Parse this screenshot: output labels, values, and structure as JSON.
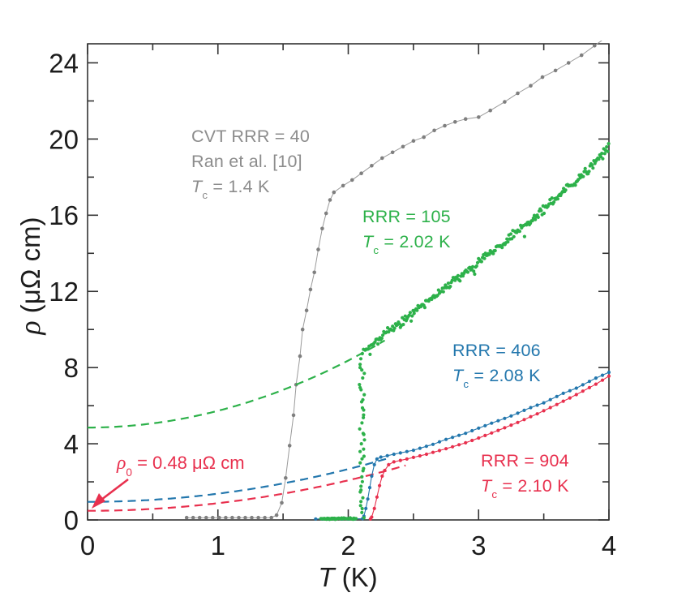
{
  "colors": {
    "gray_line": "#9a9a9a",
    "gray_marker": "#7f7f7f",
    "gray_text": "#8c8c8c",
    "green": "#2db14a",
    "blue": "#2377ad",
    "red": "#e8304e",
    "axis": "#333333",
    "tick_text": "#1c1c1c"
  },
  "axis_labels": {
    "x": {
      "symbol": "T",
      "rest": " (K)"
    },
    "y": {
      "symbol": "ρ",
      "rest": " (μΩ cm)"
    }
  },
  "labels": {
    "cvt": {
      "line1": "CVT RRR = 40",
      "line2": "Ran et al. [10]",
      "tc": {
        "symbol": "T",
        "sub": "c",
        "rest": " = 1.4 K"
      }
    },
    "rrr105": {
      "line1": "RRR = 105",
      "tc": {
        "symbol": "T",
        "sub": "c",
        "rest": " = 2.02 K"
      }
    },
    "rrr406": {
      "line1": "RRR = 406",
      "tc": {
        "symbol": "T",
        "sub": "c",
        "rest": " = 2.08 K"
      }
    },
    "rrr904": {
      "line1": "RRR = 904",
      "tc": {
        "symbol": "T",
        "sub": "c",
        "rest": " = 2.10 K"
      }
    }
  },
  "annotation_rho0": {
    "symbol": "ρ",
    "sub": "0",
    "rest": " = 0.48 μΩ cm"
  },
  "chart_data": {
    "type": "line+scatter",
    "title": "",
    "xlabel": "T (K)",
    "ylabel": "ρ (μΩ cm)",
    "xlim": [
      0,
      4
    ],
    "ylim": [
      0,
      25
    ],
    "grid": false,
    "xticks": {
      "major": [
        0,
        1,
        2,
        3,
        4
      ],
      "minor": [
        0.5,
        1.5,
        2.5,
        3.5
      ],
      "labels": [
        "0",
        "1",
        "2",
        "3",
        "4"
      ]
    },
    "yticks": {
      "major": [
        0,
        4,
        8,
        12,
        16,
        20,
        24
      ],
      "minor": [
        2,
        6,
        10,
        14,
        18,
        22
      ],
      "labels": [
        "0",
        "4",
        "8",
        "12",
        "16",
        "20",
        "24"
      ]
    },
    "series": [
      {
        "id": "cvt-rrr40",
        "label": "CVT RRR = 40, Ran et al. [10], Tc = 1.4 K",
        "style": "line+markers",
        "line_color": "#9a9a9a",
        "marker_color": "#7f7f7f",
        "marker_r": 2.3,
        "line_w": 1,
        "points": [
          [
            0.76,
            0.12
          ],
          [
            0.81,
            0.12
          ],
          [
            0.86,
            0.12
          ],
          [
            0.91,
            0.12
          ],
          [
            0.96,
            0.12
          ],
          [
            1.01,
            0.12
          ],
          [
            1.06,
            0.12
          ],
          [
            1.11,
            0.12
          ],
          [
            1.16,
            0.12
          ],
          [
            1.21,
            0.12
          ],
          [
            1.26,
            0.12
          ],
          [
            1.31,
            0.12
          ],
          [
            1.36,
            0.12
          ],
          [
            1.41,
            0.12
          ],
          [
            1.45,
            0.25
          ],
          [
            1.49,
            0.9
          ],
          [
            1.52,
            2.2
          ],
          [
            1.55,
            3.9
          ],
          [
            1.58,
            5.5
          ],
          [
            1.6,
            7.1
          ],
          [
            1.63,
            8.6
          ],
          [
            1.65,
            10.0
          ],
          [
            1.68,
            11.0
          ],
          [
            1.71,
            12.1
          ],
          [
            1.74,
            13.0
          ],
          [
            1.77,
            14.2
          ],
          [
            1.8,
            15.3
          ],
          [
            1.83,
            16.1
          ],
          [
            1.86,
            16.8
          ],
          [
            1.89,
            17.2
          ],
          [
            1.96,
            17.55
          ],
          [
            2.03,
            17.85
          ],
          [
            2.1,
            18.2
          ],
          [
            2.18,
            18.6
          ],
          [
            2.26,
            19.0
          ],
          [
            2.34,
            19.3
          ],
          [
            2.42,
            19.6
          ],
          [
            2.5,
            19.9
          ],
          [
            2.58,
            20.1
          ],
          [
            2.66,
            20.45
          ],
          [
            2.74,
            20.7
          ],
          [
            2.82,
            20.9
          ],
          [
            2.9,
            21.05
          ],
          [
            3.0,
            21.15
          ],
          [
            3.09,
            21.5
          ],
          [
            3.2,
            21.95
          ],
          [
            3.3,
            22.4
          ],
          [
            3.4,
            22.8
          ],
          [
            3.49,
            23.25
          ],
          [
            3.59,
            23.6
          ],
          [
            3.69,
            24.0
          ],
          [
            3.79,
            24.4
          ],
          [
            3.89,
            24.9
          ],
          [
            3.97,
            25.3
          ]
        ]
      },
      {
        "id": "rrr105-fit",
        "label": "RRR = 105 normal-state fit",
        "style": "dashed",
        "line_color": "#2db14a",
        "line_w": 2.2,
        "dash": [
          10,
          6.5
        ],
        "fit": {
          "rho0": 4.85,
          "coef": 0.88,
          "power": 2
        },
        "t_range": [
          0,
          2.28
        ]
      },
      {
        "id": "rrr406-fit",
        "label": "RRR = 406 normal-state fit",
        "style": "dashed",
        "line_color": "#2377ad",
        "line_w": 2.2,
        "dash": [
          10,
          6.5
        ],
        "fit": {
          "rho0": 0.95,
          "coef": 0.43,
          "power": 2
        },
        "t_range": [
          0,
          2.3
        ]
      },
      {
        "id": "rrr904-fit",
        "label": "RRR = 904 normal-state fit, rho0 = 0.48 uOhm cm",
        "style": "dashed",
        "line_color": "#e8304e",
        "line_w": 2.2,
        "dash": [
          10,
          6.5
        ],
        "fit": {
          "rho0": 0.48,
          "coef": 0.4,
          "power": 2
        },
        "t_range": [
          0,
          2.44
        ]
      },
      {
        "id": "rrr406",
        "label": "RRR = 406, Tc = 2.08 K",
        "style": "anchored-line+markers",
        "line_color": "#2377ad",
        "marker_color": "#2377ad",
        "marker_r": 2.1,
        "line_w": 1.1,
        "marker_step": 0.05,
        "anchors": [
          [
            1.75,
            0.05
          ],
          [
            1.85,
            0.05
          ],
          [
            1.95,
            0.05
          ],
          [
            2.05,
            0.05
          ],
          [
            2.11,
            0.07
          ],
          [
            2.12,
            0.2
          ],
          [
            2.135,
            0.6
          ],
          [
            2.15,
            1.1
          ],
          [
            2.165,
            1.7
          ],
          [
            2.18,
            2.3
          ],
          [
            2.2,
            2.9
          ],
          [
            2.22,
            3.2
          ],
          [
            2.25,
            3.3
          ],
          [
            2.35,
            3.45
          ],
          [
            2.5,
            3.66
          ],
          [
            2.65,
            3.97
          ],
          [
            2.75,
            4.23
          ],
          [
            2.9,
            4.55
          ],
          [
            3.0,
            4.82
          ],
          [
            3.1,
            5.08
          ],
          [
            3.25,
            5.46
          ],
          [
            3.4,
            5.9
          ],
          [
            3.5,
            6.15
          ],
          [
            3.65,
            6.65
          ],
          [
            3.75,
            6.92
          ],
          [
            3.9,
            7.45
          ],
          [
            4.0,
            7.75
          ]
        ]
      },
      {
        "id": "rrr904",
        "label": "RRR = 904, Tc = 2.10 K",
        "style": "anchored-line+markers",
        "line_color": "#e8304e",
        "marker_color": "#e8304e",
        "marker_r": 2.1,
        "line_w": 1.1,
        "marker_step": 0.05,
        "anchors": [
          [
            2.17,
            0.05
          ],
          [
            2.18,
            0.15
          ],
          [
            2.2,
            0.6
          ],
          [
            2.22,
            1.2
          ],
          [
            2.24,
            1.8
          ],
          [
            2.26,
            2.3
          ],
          [
            2.28,
            2.6
          ],
          [
            2.31,
            2.9
          ],
          [
            2.35,
            3.05
          ],
          [
            2.45,
            3.2
          ],
          [
            2.6,
            3.45
          ],
          [
            2.75,
            3.74
          ],
          [
            2.9,
            4.05
          ],
          [
            3.0,
            4.3
          ],
          [
            3.15,
            4.7
          ],
          [
            3.3,
            5.12
          ],
          [
            3.45,
            5.57
          ],
          [
            3.6,
            6.06
          ],
          [
            3.75,
            6.58
          ],
          [
            3.9,
            7.13
          ],
          [
            4.0,
            7.55
          ]
        ]
      },
      {
        "id": "rrr105",
        "label": "RRR = 105, Tc = 2.02 K",
        "style": "noisy-scatter",
        "marker_color": "#2db14a",
        "marker_r": 2.1,
        "segments": [
          {
            "kind": "band",
            "anchors": [
              [
                1.79,
                0.07
              ],
              [
                2.06,
                0.07
              ]
            ],
            "step": 0.0055,
            "noise": 0.03,
            "outlier_prob": 0
          },
          {
            "kind": "vertical",
            "t": 2.105,
            "rho_min": 0.15,
            "rho_max": 8.9,
            "count": 42,
            "t_jitter": 0.02
          },
          {
            "kind": "band",
            "anchors": [
              [
                2.13,
                8.95
              ],
              [
                2.2,
                9.3
              ],
              [
                2.35,
                10.1
              ],
              [
                2.5,
                10.9
              ],
              [
                2.75,
                12.2
              ],
              [
                3.0,
                13.5
              ],
              [
                3.25,
                14.85
              ],
              [
                3.5,
                16.3
              ],
              [
                3.75,
                17.8
              ],
              [
                3.9,
                18.8
              ],
              [
                4.0,
                19.55
              ]
            ],
            "step": 0.0075,
            "noise": 0.17,
            "outlier_prob": 0.05
          }
        ]
      }
    ]
  },
  "plot_geometry_note": "x axis 0-4 K, y axis 0-25 uOhm cm, ticks inward on all four spines"
}
